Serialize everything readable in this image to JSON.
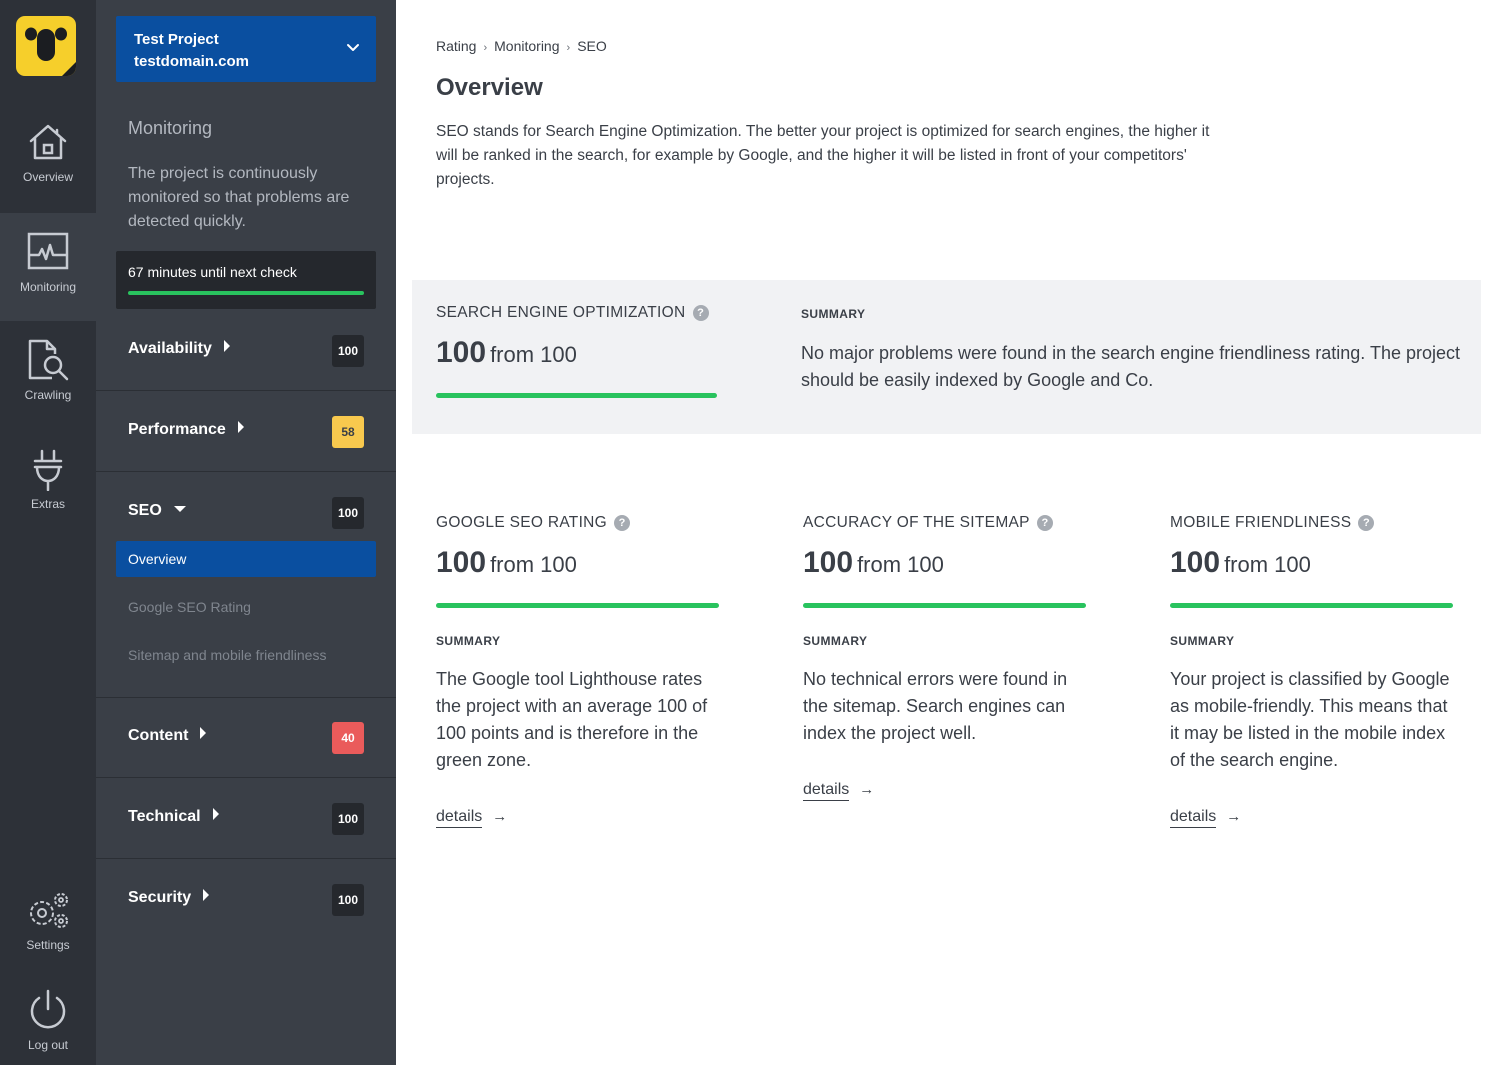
{
  "rail": {
    "logo_icon": "koala-logo-icon",
    "items": [
      {
        "label": "Overview",
        "icon": "house-icon"
      },
      {
        "label": "Monitoring",
        "icon": "heartbeat-monitor-icon"
      },
      {
        "label": "Crawling",
        "icon": "document-search-icon"
      },
      {
        "label": "Extras",
        "icon": "plug-icon"
      },
      {
        "label": "Settings",
        "icon": "gears-icon"
      },
      {
        "label": "Log out",
        "icon": "power-icon"
      }
    ]
  },
  "project": {
    "name": "Test Project",
    "domain": "testdomain.com"
  },
  "monitoring": {
    "title": "Monitoring",
    "description": "The project is continuously monitored so that problems are detected quickly.",
    "next_check": "67 minutes until next check"
  },
  "categories": [
    {
      "name": "Availability",
      "score": "100"
    },
    {
      "name": "Performance",
      "score": "58"
    },
    {
      "name": "SEO",
      "score": "100"
    },
    {
      "name": "Content",
      "score": "40"
    },
    {
      "name": "Technical",
      "score": "100"
    },
    {
      "name": "Security",
      "score": "100"
    }
  ],
  "seo_subnav": [
    "Overview",
    "Google SEO Rating",
    "Sitemap and mobile friendliness"
  ],
  "breadcrumb": [
    "Rating",
    "Monitoring",
    "SEO"
  ],
  "page_title": "Overview",
  "intro": "SEO stands for Search Engine Optimization. The better your project is optimized for search engines, the higher it will be ranked in the search, for example by Google, and the higher it will be listed in front of your competitors' projects.",
  "hero": {
    "label": "SEARCH ENGINE OPTIMIZATION",
    "score": "100",
    "from": "from 100",
    "progress": 1.0,
    "summary_label": "SUMMARY",
    "summary": "No major problems were found in the search engine friendliness rating. The project should be easily indexed by Google and Co."
  },
  "cards": [
    {
      "label": "GOOGLE SEO RATING",
      "score": "100",
      "from": "from 100",
      "progress": 1.0,
      "summary_label": "SUMMARY",
      "summary": "The Google tool Lighthouse rates the project with an average 100 of 100 points and is therefore in the green zone.",
      "link": "details"
    },
    {
      "label": "ACCURACY OF THE SITEMAP",
      "score": "100",
      "from": "from 100",
      "progress": 1.0,
      "summary_label": "SUMMARY",
      "summary": "No technical errors were found in the sitemap. Search engines can index the project well.",
      "link": "details"
    },
    {
      "label": "MOBILE FRIENDLINESS",
      "score": "100",
      "from": "from 100",
      "progress": 1.0,
      "summary_label": "SUMMARY",
      "summary": "Your project is classified by Google as mobile-friendly. This means that it may be listed in the mobile index of the search engine.",
      "link": "details"
    }
  ],
  "help_glyph": "?",
  "arrow_glyph": "→",
  "colors": {
    "rail": "#2d3138",
    "sidebar": "#3a3f47",
    "accent_blue": "#0a4fa0",
    "success": "#29c35e",
    "warning": "#f8c94e",
    "danger": "#ea5b5b",
    "logo_yellow": "#f6cf2b"
  }
}
